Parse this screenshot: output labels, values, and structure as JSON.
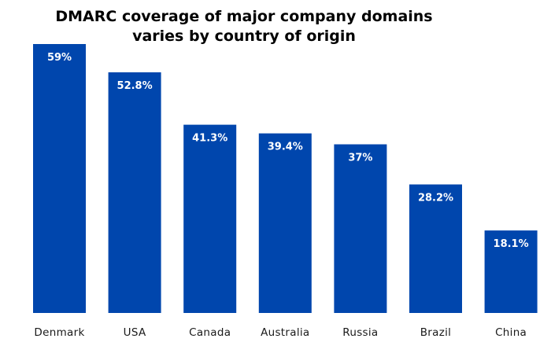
{
  "chart_data": {
    "type": "bar",
    "title": "DMARC coverage of major company domains varies by country of origin",
    "title_lines": [
      "DMARC coverage of major company domains",
      "varies by country of origin"
    ],
    "categories": [
      "Denmark",
      "USA",
      "Canada",
      "Australia",
      "Russia",
      "Brazil",
      "China"
    ],
    "values": [
      59,
      52.8,
      41.3,
      39.4,
      37,
      28.2,
      18.1
    ],
    "value_labels": [
      "59%",
      "52.8%",
      "41.3%",
      "39.4%",
      "37%",
      "28.2%",
      "18.1%"
    ],
    "ylim": [
      0,
      59
    ],
    "xlabel": "",
    "ylabel": "",
    "grid": false,
    "bar_color": "#0046AD"
  }
}
